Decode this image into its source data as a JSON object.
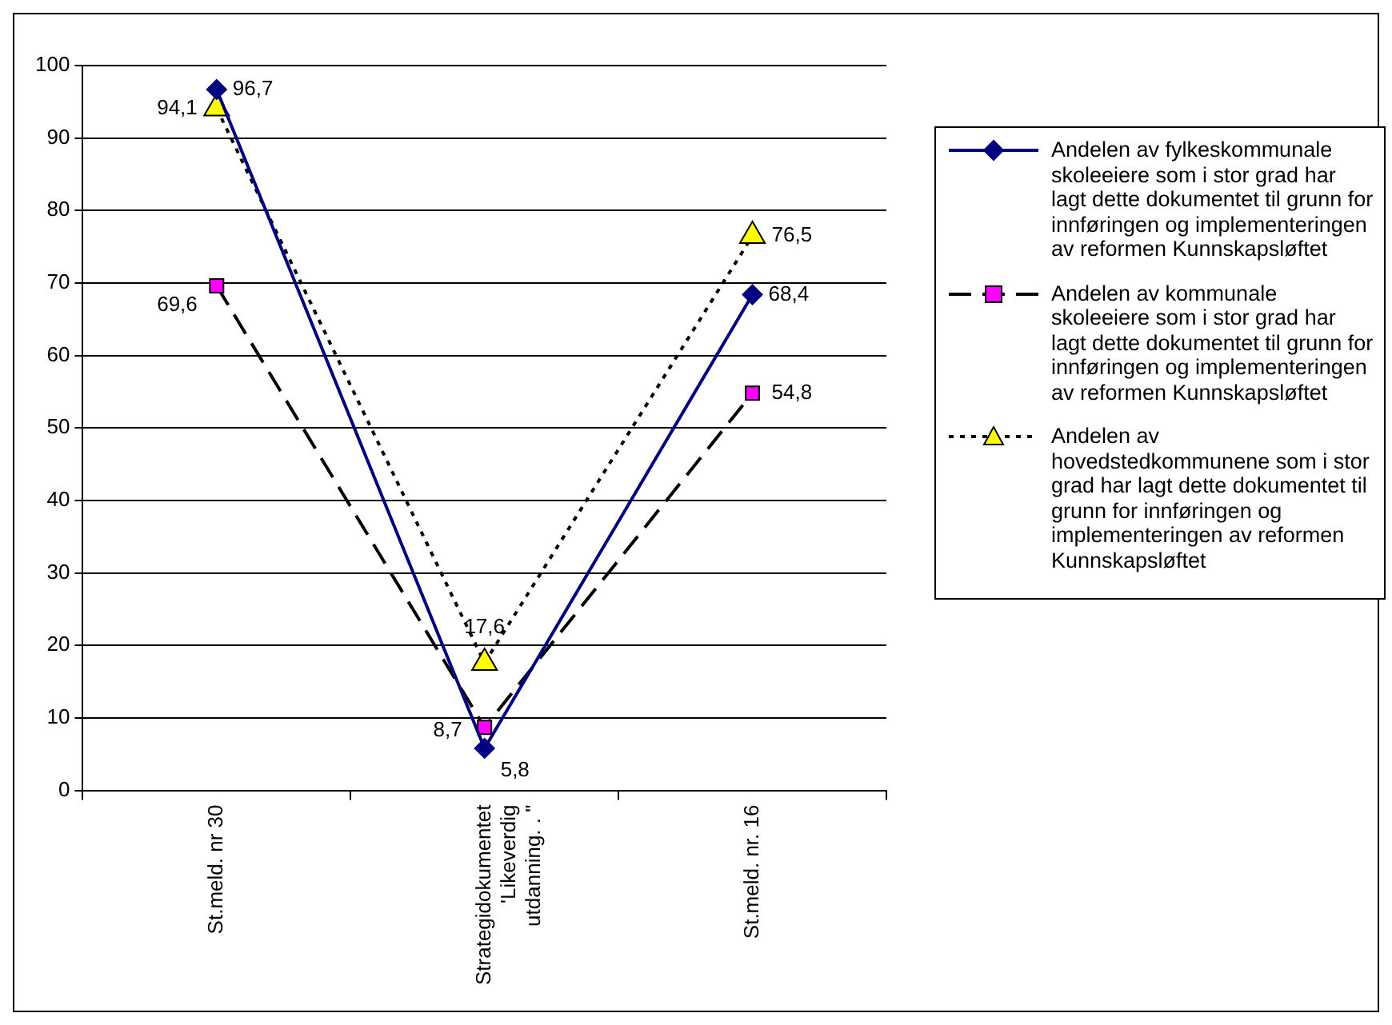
{
  "chart_data": {
    "type": "line",
    "categories": [
      "St.meld. nr 30",
      "Strategidokumentet 'Likeverdig utdanning. . \"",
      "St.meld. nr. 16"
    ],
    "series": [
      {
        "name": "Andelen av fylkeskommunale skoleeiere som i stor grad har lagt dette dokumentet til grunn for innføringen og implementeringen av reformen Kunnskapsløftet",
        "color": "#000080",
        "values": [
          96.7,
          5.8,
          68.4
        ],
        "value_labels": [
          "96,7",
          "5,8",
          "68,4"
        ],
        "marker": "diamond",
        "line_style": "solid"
      },
      {
        "name": "Andelen av kommunale skoleeiere som i stor grad har lagt dette dokumentet til grunn for innføringen og implementeringen av reformen Kunnskapsløftet",
        "color": "#000000",
        "colors": [
          "#ff00ff",
          "#ff00ff",
          "#ff00ff"
        ],
        "values": [
          69.6,
          8.7,
          54.8
        ],
        "value_labels": [
          "69,6",
          "8,7",
          "54,8"
        ],
        "marker": "square",
        "line_style": "dashed"
      },
      {
        "name": "Andelen av hovedstedkommunene som i stor grad har lagt dette dokumentet til grunn for innføringen og implementeringen av reformen Kunnskapsløftet",
        "color": "#000000",
        "colors": [
          "#ffff00",
          "#ffff00",
          "#ffff00"
        ],
        "values": [
          94.1,
          17.6,
          76.5
        ],
        "value_labels": [
          "94,1",
          "17,6",
          "76,5"
        ],
        "marker": "triangle",
        "line_style": "dotted"
      }
    ],
    "ylim": [
      0,
      100
    ],
    "yticks": [
      0,
      10,
      20,
      30,
      40,
      50,
      60,
      70,
      80,
      90,
      100
    ],
    "grid": "y",
    "legend": "right"
  }
}
